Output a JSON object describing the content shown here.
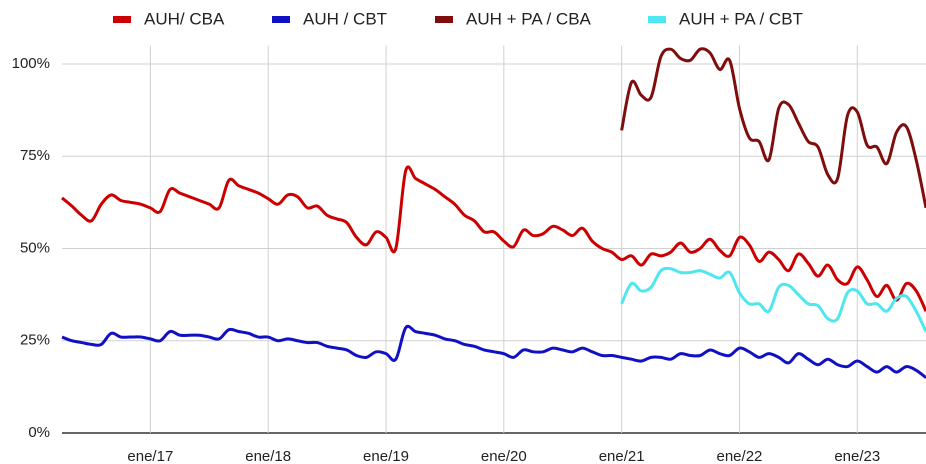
{
  "chart_data": {
    "type": "line",
    "categories": [
      null,
      null,
      null,
      null,
      null,
      null,
      null,
      null,
      null,
      "ene/17",
      null,
      null,
      null,
      null,
      null,
      null,
      null,
      null,
      null,
      null,
      null,
      "ene/18",
      null,
      null,
      null,
      null,
      null,
      null,
      null,
      null,
      null,
      null,
      null,
      "ene/19",
      null,
      null,
      null,
      null,
      null,
      null,
      null,
      null,
      null,
      null,
      null,
      "ene/20",
      null,
      null,
      null,
      null,
      null,
      null,
      null,
      null,
      null,
      null,
      null,
      "ene/21",
      null,
      null,
      null,
      null,
      null,
      null,
      null,
      null,
      null,
      null,
      null,
      "ene/22",
      null,
      null,
      null,
      null,
      null,
      null,
      null,
      null,
      null,
      null,
      null,
      "ene/23",
      null,
      null,
      null,
      null,
      null,
      null,
      null
    ],
    "series": [
      {
        "name": "AUH/ CBA",
        "color": "#cc0000",
        "values": [
          63.7,
          61.5,
          59,
          57.5,
          62,
          64.5,
          63,
          62.5,
          62,
          61,
          60,
          66,
          65,
          64,
          63,
          62,
          61,
          68.5,
          67,
          66,
          65,
          63.5,
          62,
          64.5,
          64,
          61,
          61.5,
          59,
          58,
          57,
          53,
          51,
          54.5,
          53,
          50,
          71,
          69,
          67.5,
          66,
          64,
          62,
          59,
          57.5,
          54.5,
          54.5,
          52,
          50.5,
          55,
          53.5,
          54,
          56,
          55,
          53.5,
          55.5,
          52,
          50,
          49,
          47,
          48,
          45.5,
          48.5,
          48,
          49,
          51.5,
          49,
          50,
          52.5,
          49.5,
          48,
          53,
          51,
          46.5,
          49,
          47,
          44,
          48.5,
          46,
          42.5,
          45.5,
          41.5,
          40.5,
          45,
          41.5,
          37,
          40,
          36,
          40.5,
          38.5,
          33
        ]
      },
      {
        "name": "AUH / CBT",
        "color": "#1010c4",
        "values": [
          26,
          25,
          24.5,
          24,
          24,
          27,
          26,
          26,
          26,
          25.5,
          25,
          27.5,
          26.5,
          26.5,
          26.5,
          26,
          25.5,
          28,
          27.5,
          27,
          26,
          26,
          25,
          25.5,
          25,
          24.5,
          24.5,
          23.5,
          23,
          22.5,
          21,
          20.5,
          22,
          21.5,
          20,
          28.5,
          27.5,
          27,
          26.5,
          25.5,
          25,
          24,
          23.5,
          22.5,
          22,
          21.5,
          20.5,
          22.5,
          22,
          22,
          23,
          22.5,
          22,
          23,
          22,
          21,
          21,
          20.5,
          20,
          19.5,
          20.5,
          20.5,
          20,
          21.5,
          21,
          21,
          22.5,
          21.5,
          21,
          23,
          22,
          20.5,
          21.5,
          20.5,
          19,
          21.5,
          20,
          18.5,
          20,
          18.5,
          18,
          19.5,
          18,
          16.5,
          18,
          16.5,
          18,
          17,
          15
        ]
      },
      {
        "name": "AUH + PA / CBA",
        "color": "#800d0d",
        "values": [
          null,
          null,
          null,
          null,
          null,
          null,
          null,
          null,
          null,
          null,
          null,
          null,
          null,
          null,
          null,
          null,
          null,
          null,
          null,
          null,
          null,
          null,
          null,
          null,
          null,
          null,
          null,
          null,
          null,
          null,
          null,
          null,
          null,
          null,
          null,
          null,
          null,
          null,
          null,
          null,
          null,
          null,
          null,
          null,
          null,
          null,
          null,
          null,
          null,
          null,
          null,
          null,
          null,
          null,
          null,
          null,
          null,
          82,
          95,
          91.5,
          91,
          102,
          104,
          101.5,
          101,
          104,
          103,
          98.5,
          101,
          88,
          80,
          79,
          74,
          88,
          89,
          84,
          79,
          77.5,
          70,
          69,
          86,
          87,
          78,
          77.5,
          73,
          81.5,
          83,
          74,
          61
        ]
      },
      {
        "name": "AUH + PA / CBT",
        "color": "#4ee6ef",
        "values": [
          null,
          null,
          null,
          null,
          null,
          null,
          null,
          null,
          null,
          null,
          null,
          null,
          null,
          null,
          null,
          null,
          null,
          null,
          null,
          null,
          null,
          null,
          null,
          null,
          null,
          null,
          null,
          null,
          null,
          null,
          null,
          null,
          null,
          null,
          null,
          null,
          null,
          null,
          null,
          null,
          null,
          null,
          null,
          null,
          null,
          null,
          null,
          null,
          null,
          null,
          null,
          null,
          null,
          null,
          null,
          null,
          null,
          35,
          40.5,
          38.5,
          39.5,
          44,
          44.5,
          43.5,
          43.5,
          44,
          43,
          42,
          43.5,
          38,
          35,
          35,
          33,
          39.5,
          40,
          37.5,
          35,
          34.5,
          31,
          31,
          38,
          38.5,
          35,
          35,
          33,
          36.5,
          37,
          33,
          27.5
        ]
      }
    ],
    "ylim": [
      0,
      105
    ],
    "yticks": [
      {
        "value": 0,
        "label": "0%"
      },
      {
        "value": 25,
        "label": "25%"
      },
      {
        "value": 50,
        "label": "50%"
      },
      {
        "value": 75,
        "label": "75%"
      },
      {
        "value": 100,
        "label": "100%"
      }
    ],
    "grid": true,
    "legend": "top"
  }
}
